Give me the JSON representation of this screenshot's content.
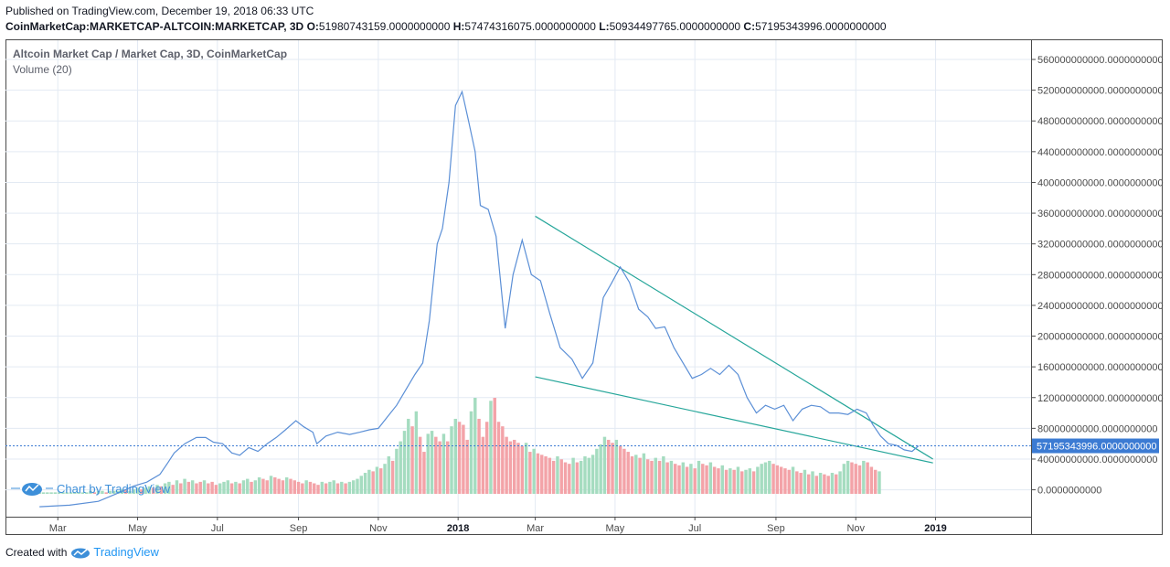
{
  "header": {
    "published": "Published on TradingView.com, December 19, 2018 06:33 UTC",
    "symbol": "CoinMarketCap:MARKETCAP-ALTCOIN:MARKETCAP, 3D",
    "o_label": "O:",
    "o_value": "51980743159.0000000000",
    "h_label": "H:",
    "h_value": "57474316075.0000000000",
    "l_label": "L:",
    "l_value": "50934497765.0000000000",
    "c_label": "C:",
    "c_value": "57195343996.0000000000"
  },
  "legend": {
    "title": "Altcoin Market Cap / Market Cap, 3D, CoinMarketCap",
    "volume": "Volume (20)"
  },
  "watermark": "Chart by TradingView",
  "footer": {
    "created_with": "Created with",
    "brand": "TradingView"
  },
  "colors": {
    "line": "#5b8fd6",
    "trend": "#26a69a",
    "vol_up": "#a5dcc0",
    "vol_down": "#f3a3a8",
    "grid": "#e3eaf3",
    "price_label": "#3c7bd3"
  },
  "chart_data": {
    "type": "line",
    "title": "Altcoin Market Cap / Market Cap, 3D, CoinMarketCap",
    "ylim": [
      -35000000000,
      585000000000
    ],
    "y_ticks": [
      {
        "v": 0,
        "label": "0.0000000000"
      },
      {
        "v": 40000000000,
        "label": "40000000000.0000000000"
      },
      {
        "v": 80000000000,
        "label": "80000000000.0000000000"
      },
      {
        "v": 120000000000,
        "label": "120000000000.0000000000"
      },
      {
        "v": 160000000000,
        "label": "160000000000.0000000000"
      },
      {
        "v": 200000000000,
        "label": "200000000000.0000000000"
      },
      {
        "v": 240000000000,
        "label": "240000000000.0000000000"
      },
      {
        "v": 280000000000,
        "label": "280000000000.0000000000"
      },
      {
        "v": 320000000000,
        "label": "320000000000.0000000000"
      },
      {
        "v": 360000000000,
        "label": "360000000000.0000000000"
      },
      {
        "v": 400000000000,
        "label": "400000000000.0000000000"
      },
      {
        "v": 440000000000,
        "label": "440000000000.0000000000"
      },
      {
        "v": 480000000000,
        "label": "480000000000.0000000000"
      },
      {
        "v": 520000000000,
        "label": "520000000000.0000000000"
      },
      {
        "v": 560000000000,
        "label": "560000000000.0000000000"
      }
    ],
    "x_ticks": [
      {
        "date": "2017-03-01",
        "label": "Mar",
        "bold": false
      },
      {
        "date": "2017-05-01",
        "label": "May",
        "bold": false
      },
      {
        "date": "2017-07-01",
        "label": "Jul",
        "bold": false
      },
      {
        "date": "2017-09-01",
        "label": "Sep",
        "bold": false
      },
      {
        "date": "2017-11-01",
        "label": "Nov",
        "bold": false
      },
      {
        "date": "2018-01-01",
        "label": "2018",
        "bold": true
      },
      {
        "date": "2018-03-01",
        "label": "Mar",
        "bold": false
      },
      {
        "date": "2018-05-01",
        "label": "May",
        "bold": false
      },
      {
        "date": "2018-07-01",
        "label": "Jul",
        "bold": false
      },
      {
        "date": "2018-09-01",
        "label": "Sep",
        "bold": false
      },
      {
        "date": "2018-11-01",
        "label": "Nov",
        "bold": false
      },
      {
        "date": "2019-01-01",
        "label": "2019",
        "bold": true
      }
    ],
    "x_range": [
      "2017-01-20",
      "2019-03-15"
    ],
    "last_price": {
      "value": 57195343996,
      "label": "57195343996.0000000000"
    },
    "series": [
      {
        "points": [
          [
            "2017-02-15",
            -22000000000
          ],
          [
            "2017-03-10",
            -20000000000
          ],
          [
            "2017-04-01",
            -15000000000
          ],
          [
            "2017-04-15",
            -5000000000
          ],
          [
            "2017-04-28",
            5000000000
          ],
          [
            "2017-05-08",
            10000000000
          ],
          [
            "2017-05-18",
            20000000000
          ],
          [
            "2017-05-24",
            35000000000
          ],
          [
            "2017-05-29",
            48000000000
          ],
          [
            "2017-06-06",
            60000000000
          ],
          [
            "2017-06-15",
            68000000000
          ],
          [
            "2017-06-22",
            68000000000
          ],
          [
            "2017-06-28",
            62000000000
          ],
          [
            "2017-07-05",
            60000000000
          ],
          [
            "2017-07-12",
            48000000000
          ],
          [
            "2017-07-18",
            45000000000
          ],
          [
            "2017-07-25",
            55000000000
          ],
          [
            "2017-08-01",
            50000000000
          ],
          [
            "2017-08-08",
            60000000000
          ],
          [
            "2017-08-15",
            68000000000
          ],
          [
            "2017-08-22",
            78000000000
          ],
          [
            "2017-08-30",
            90000000000
          ],
          [
            "2017-09-05",
            82000000000
          ],
          [
            "2017-09-12",
            75000000000
          ],
          [
            "2017-09-15",
            60000000000
          ],
          [
            "2017-09-22",
            70000000000
          ],
          [
            "2017-10-01",
            75000000000
          ],
          [
            "2017-10-10",
            72000000000
          ],
          [
            "2017-10-18",
            75000000000
          ],
          [
            "2017-10-25",
            78000000000
          ],
          [
            "2017-11-01",
            80000000000
          ],
          [
            "2017-11-08",
            95000000000
          ],
          [
            "2017-11-15",
            110000000000
          ],
          [
            "2017-11-22",
            130000000000
          ],
          [
            "2017-11-29",
            150000000000
          ],
          [
            "2017-12-05",
            165000000000
          ],
          [
            "2017-12-10",
            220000000000
          ],
          [
            "2017-12-16",
            320000000000
          ],
          [
            "2017-12-20",
            340000000000
          ],
          [
            "2017-12-25",
            400000000000
          ],
          [
            "2017-12-30",
            500000000000
          ],
          [
            "2018-01-04",
            518000000000
          ],
          [
            "2018-01-09",
            480000000000
          ],
          [
            "2018-01-14",
            440000000000
          ],
          [
            "2018-01-18",
            370000000000
          ],
          [
            "2018-01-24",
            365000000000
          ],
          [
            "2018-01-30",
            330000000000
          ],
          [
            "2018-02-06",
            210000000000
          ],
          [
            "2018-02-12",
            280000000000
          ],
          [
            "2018-02-19",
            325000000000
          ],
          [
            "2018-02-26",
            280000000000
          ],
          [
            "2018-03-05",
            272000000000
          ],
          [
            "2018-03-12",
            230000000000
          ],
          [
            "2018-03-20",
            185000000000
          ],
          [
            "2018-03-29",
            170000000000
          ],
          [
            "2018-04-06",
            145000000000
          ],
          [
            "2018-04-14",
            165000000000
          ],
          [
            "2018-04-22",
            250000000000
          ],
          [
            "2018-04-28",
            268000000000
          ],
          [
            "2018-05-05",
            290000000000
          ],
          [
            "2018-05-12",
            270000000000
          ],
          [
            "2018-05-19",
            235000000000
          ],
          [
            "2018-05-26",
            225000000000
          ],
          [
            "2018-06-01",
            210000000000
          ],
          [
            "2018-06-08",
            212000000000
          ],
          [
            "2018-06-15",
            185000000000
          ],
          [
            "2018-06-22",
            165000000000
          ],
          [
            "2018-06-29",
            145000000000
          ],
          [
            "2018-07-06",
            150000000000
          ],
          [
            "2018-07-13",
            158000000000
          ],
          [
            "2018-07-20",
            150000000000
          ],
          [
            "2018-07-27",
            162000000000
          ],
          [
            "2018-08-03",
            150000000000
          ],
          [
            "2018-08-10",
            120000000000
          ],
          [
            "2018-08-17",
            100000000000
          ],
          [
            "2018-08-24",
            110000000000
          ],
          [
            "2018-08-31",
            105000000000
          ],
          [
            "2018-09-07",
            110000000000
          ],
          [
            "2018-09-14",
            90000000000
          ],
          [
            "2018-09-21",
            105000000000
          ],
          [
            "2018-09-28",
            110000000000
          ],
          [
            "2018-10-05",
            108000000000
          ],
          [
            "2018-10-12",
            100000000000
          ],
          [
            "2018-10-19",
            100000000000
          ],
          [
            "2018-10-26",
            98000000000
          ],
          [
            "2018-11-02",
            105000000000
          ],
          [
            "2018-11-09",
            100000000000
          ],
          [
            "2018-11-14",
            85000000000
          ],
          [
            "2018-11-20",
            70000000000
          ],
          [
            "2018-11-26",
            60000000000
          ],
          [
            "2018-12-02",
            58000000000
          ],
          [
            "2018-12-08",
            52000000000
          ],
          [
            "2018-12-14",
            50000000000
          ],
          [
            "2018-12-19",
            57195343996
          ]
        ]
      }
    ],
    "trendlines": [
      {
        "from": [
          "2018-03-01",
          356000000000
        ],
        "to": [
          "2018-12-30",
          40000000000
        ]
      },
      {
        "from": [
          "2018-03-01",
          147000000000
        ],
        "to": [
          "2018-12-30",
          35000000000
        ]
      }
    ],
    "volume": {
      "max": 64,
      "start": "2017-02-15",
      "step_days": 3,
      "values": [
        1,
        1,
        1,
        1,
        1,
        1,
        1,
        1,
        1,
        1,
        1,
        1,
        1,
        2,
        1,
        2,
        2,
        1,
        2,
        2,
        2,
        3,
        3,
        2,
        3,
        4,
        3,
        4,
        5,
        4,
        6,
        5,
        7,
        8,
        6,
        9,
        7,
        10,
        8,
        9,
        7,
        8,
        9,
        7,
        8,
        6,
        7,
        8,
        9,
        7,
        8,
        7,
        9,
        10,
        8,
        9,
        11,
        10,
        9,
        12,
        11,
        10,
        9,
        11,
        10,
        9,
        8,
        7,
        9,
        8,
        7,
        6,
        8,
        7,
        8,
        9,
        7,
        8,
        7,
        8,
        9,
        10,
        12,
        14,
        16,
        15,
        18,
        17,
        20,
        25,
        22,
        30,
        35,
        42,
        50,
        45,
        55,
        38,
        28,
        40,
        42,
        38,
        35,
        40,
        35,
        45,
        50,
        48,
        46,
        36,
        55,
        64,
        50,
        38,
        48,
        62,
        64,
        48,
        45,
        38,
        35,
        36,
        34,
        32,
        34,
        28,
        30,
        27,
        26,
        25,
        24,
        22,
        25,
        23,
        21,
        20,
        24,
        21,
        22,
        25,
        24,
        26,
        30,
        33,
        38,
        36,
        34,
        36,
        32,
        30,
        28,
        25,
        26,
        24,
        27,
        23,
        22,
        24,
        22,
        25,
        21,
        22,
        20,
        19,
        21,
        18,
        20,
        17,
        22,
        20,
        19,
        21,
        18,
        17,
        19,
        16,
        17,
        16,
        18,
        15,
        16,
        17,
        15,
        18,
        20,
        21,
        22,
        20,
        19,
        18,
        17,
        16,
        18,
        15,
        14,
        16,
        13,
        15,
        12,
        14,
        13,
        12,
        14,
        13,
        15,
        20,
        22,
        21,
        20,
        19,
        22,
        21,
        18,
        16,
        15
      ],
      "dirs": [
        1,
        1,
        1,
        1,
        1,
        1,
        1,
        1,
        1,
        1,
        1,
        1,
        1,
        1,
        -1,
        1,
        1,
        -1,
        1,
        1,
        1,
        1,
        -1,
        1,
        1,
        1,
        -1,
        1,
        1,
        -1,
        1,
        -1,
        1,
        1,
        -1,
        1,
        -1,
        1,
        -1,
        1,
        -1,
        -1,
        1,
        -1,
        -1,
        -1,
        1,
        1,
        1,
        -1,
        1,
        -1,
        1,
        1,
        -1,
        1,
        1,
        -1,
        -1,
        1,
        -1,
        -1,
        -1,
        1,
        -1,
        -1,
        -1,
        -1,
        1,
        -1,
        -1,
        -1,
        1,
        -1,
        1,
        1,
        -1,
        1,
        -1,
        1,
        1,
        1,
        1,
        1,
        1,
        -1,
        1,
        -1,
        1,
        1,
        -1,
        1,
        1,
        1,
        1,
        -1,
        1,
        -1,
        -1,
        1,
        1,
        -1,
        -1,
        1,
        -1,
        1,
        1,
        -1,
        -1,
        -1,
        1,
        1,
        -1,
        -1,
        -1,
        1,
        -1,
        -1,
        -1,
        -1,
        -1,
        -1,
        -1,
        -1,
        1,
        -1,
        1,
        -1,
        -1,
        -1,
        -1,
        -1,
        1,
        -1,
        -1,
        -1,
        1,
        -1,
        1,
        1,
        1,
        1,
        1,
        1,
        1,
        -1,
        -1,
        1,
        -1,
        -1,
        -1,
        -1,
        1,
        -1,
        1,
        -1,
        -1,
        1,
        -1,
        1,
        -1,
        1,
        -1,
        -1,
        1,
        -1,
        1,
        -1,
        1,
        -1,
        -1,
        1,
        -1,
        -1,
        1,
        -1,
        1,
        -1,
        1,
        -1,
        1,
        1,
        -1,
        1,
        1,
        1,
        1,
        -1,
        -1,
        -1,
        -1,
        -1,
        1,
        -1,
        -1,
        1,
        -1,
        1,
        -1,
        1,
        -1,
        -1,
        1,
        -1,
        1,
        1,
        1,
        -1,
        -1,
        -1,
        1,
        -1,
        -1,
        -1,
        1
      ]
    }
  }
}
